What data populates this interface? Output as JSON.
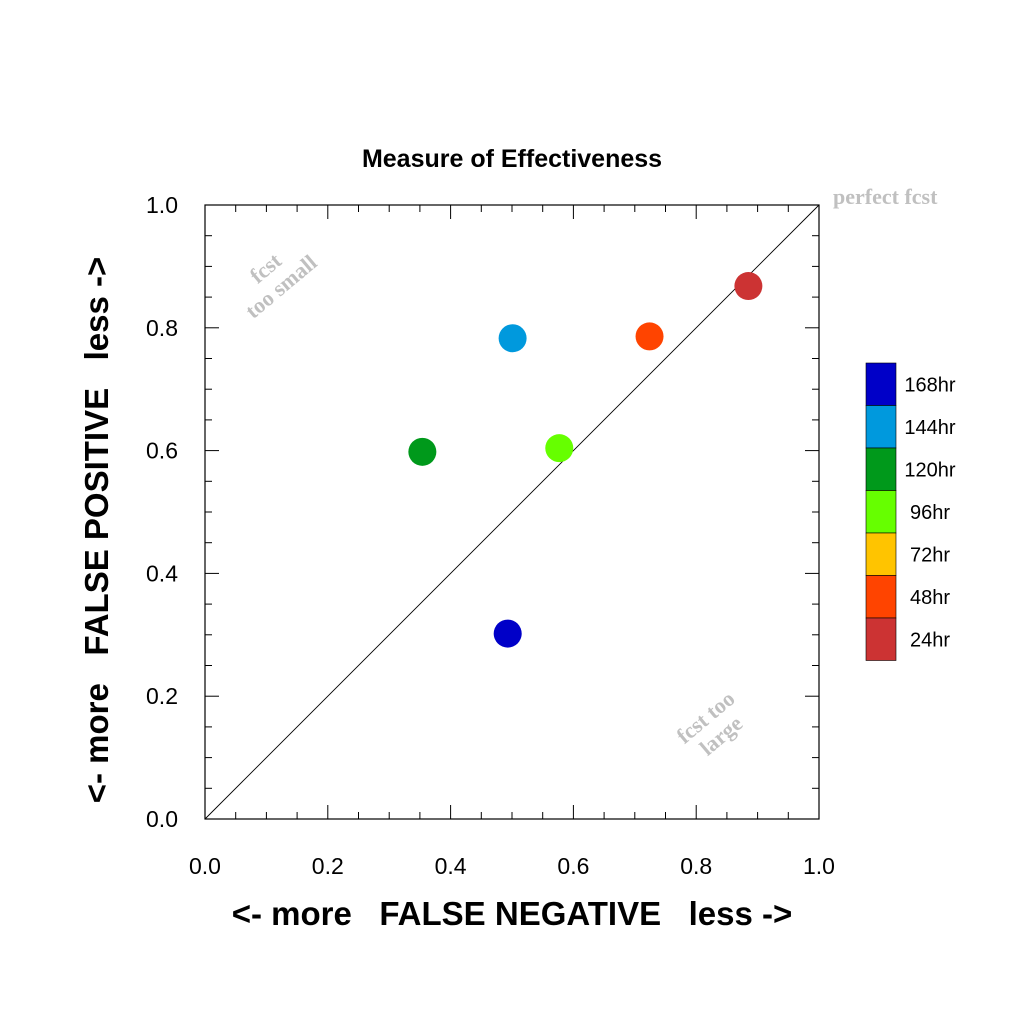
{
  "chart_data": {
    "type": "scatter",
    "title": "Measure of Effectiveness",
    "xlabel": "<- more   FALSE NEGATIVE   less ->",
    "ylabel": "<- more   FALSE POSITIVE   less ->",
    "xlim": [
      0.0,
      1.0
    ],
    "ylim": [
      0.0,
      1.0
    ],
    "xticks": [
      "0.0",
      "0.2",
      "0.4",
      "0.6",
      "0.8",
      "1.0"
    ],
    "yticks": [
      "0.0",
      "0.2",
      "0.4",
      "0.6",
      "0.8",
      "1.0"
    ],
    "grid": false,
    "diagonal_line": true,
    "annotations": {
      "top_left": [
        "fcst",
        "too small"
      ],
      "bottom_right": [
        "fcst too",
        "large"
      ],
      "diagonal_end": "perfect fcst"
    },
    "legend_position": "right",
    "series": [
      {
        "name": "168hr",
        "color": "#0000c8",
        "x": 0.493,
        "y": 0.302
      },
      {
        "name": "144hr",
        "color": "#0099dd",
        "x": 0.501,
        "y": 0.783
      },
      {
        "name": "120hr",
        "color": "#00991b",
        "x": 0.354,
        "y": 0.598
      },
      {
        "name": "96hr",
        "color": "#66ff00",
        "x": 0.577,
        "y": 0.604
      },
      {
        "name": "72hr",
        "color": "#ffc400",
        "x": null,
        "y": null
      },
      {
        "name": "48hr",
        "color": "#ff4400",
        "x": 0.724,
        "y": 0.786
      },
      {
        "name": "24hr",
        "color": "#cc3333",
        "x": 0.885,
        "y": 0.868
      }
    ]
  }
}
